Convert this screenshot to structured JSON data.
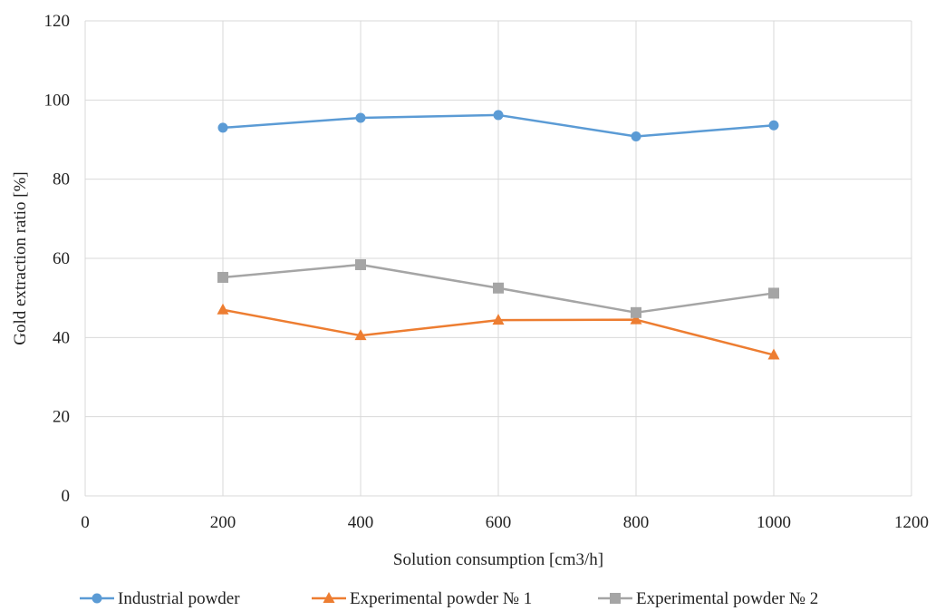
{
  "chart_data": {
    "type": "line",
    "xlabel": "Solution  consumption  [cm3/h]",
    "ylabel": "Gold  extraction  ratio  [%]",
    "xlim": [
      0,
      1200
    ],
    "ylim": [
      0,
      120
    ],
    "xticks": [
      0,
      200,
      400,
      600,
      800,
      1000,
      1200
    ],
    "yticks": [
      0,
      20,
      40,
      60,
      80,
      100,
      120
    ],
    "grid": true,
    "legend_position": "bottom",
    "series": [
      {
        "name": "Industrial powder",
        "color": "#5b9bd5",
        "marker": "circle",
        "x": [
          200,
          400,
          600,
          800,
          1000
        ],
        "y": [
          93,
          95.5,
          96.2,
          90.8,
          93.6
        ]
      },
      {
        "name": "Experimental  powder № 1",
        "color": "#ed7d31",
        "marker": "triangle",
        "x": [
          200,
          400,
          600,
          800,
          1000
        ],
        "y": [
          47,
          40.5,
          44.4,
          44.5,
          35.6
        ]
      },
      {
        "name": "Experimental  powder  № 2",
        "color": "#a5a5a5",
        "marker": "square",
        "x": [
          200,
          400,
          600,
          800,
          1000
        ],
        "y": [
          55.2,
          58.4,
          52.5,
          46.3,
          51.2
        ]
      }
    ]
  }
}
